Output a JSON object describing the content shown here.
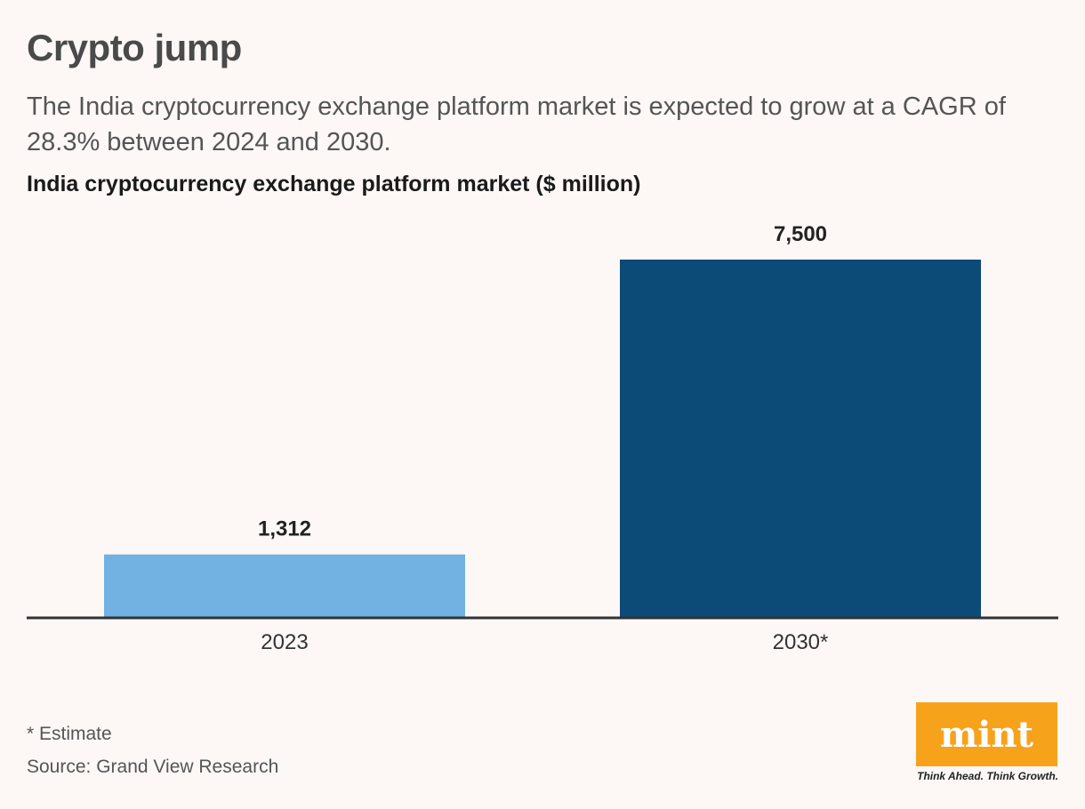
{
  "header": {
    "title": "Crypto jump",
    "subtitle": "The India cryptocurrency exchange platform market is expected to grow at a CAGR of 28.3% between 2024 and 2030."
  },
  "chart_data": {
    "type": "bar",
    "title": "India cryptocurrency exchange platform market ($ million)",
    "categories": [
      "2023",
      "2030*"
    ],
    "values": [
      1312,
      7500
    ],
    "value_labels": [
      "1,312",
      "7,500"
    ],
    "bar_colors": [
      "#72b2e2",
      "#0c4a78"
    ],
    "xlabel": "",
    "ylabel": "",
    "ylim": [
      0,
      7500
    ],
    "grid": false,
    "legend": "none"
  },
  "footer": {
    "footnote": "* Estimate",
    "source": "Source: Grand View Research"
  },
  "brand": {
    "logo_text": "mint",
    "tagline": "Think Ahead. Think Growth.",
    "color": "#f7a21b"
  }
}
